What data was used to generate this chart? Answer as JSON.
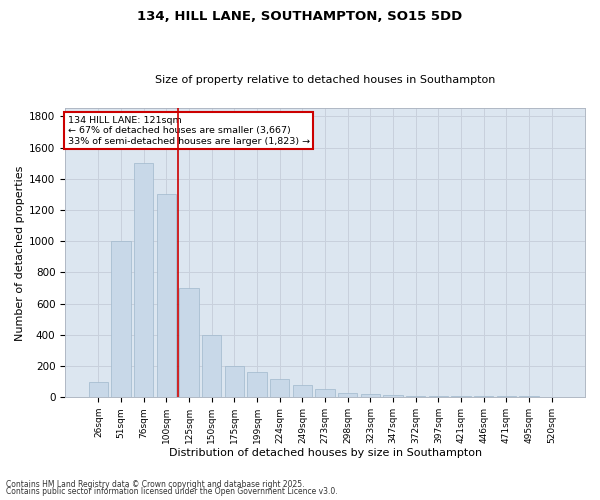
{
  "title": "134, HILL LANE, SOUTHAMPTON, SO15 5DD",
  "subtitle": "Size of property relative to detached houses in Southampton",
  "xlabel": "Distribution of detached houses by size in Southampton",
  "ylabel": "Number of detached properties",
  "categories": [
    "26sqm",
    "51sqm",
    "76sqm",
    "100sqm",
    "125sqm",
    "150sqm",
    "175sqm",
    "199sqm",
    "224sqm",
    "249sqm",
    "273sqm",
    "298sqm",
    "323sqm",
    "347sqm",
    "372sqm",
    "397sqm",
    "421sqm",
    "446sqm",
    "471sqm",
    "495sqm",
    "520sqm"
  ],
  "values": [
    100,
    1000,
    1500,
    1300,
    700,
    400,
    200,
    160,
    120,
    80,
    50,
    30,
    20,
    15,
    10,
    5,
    5,
    5,
    5,
    5,
    2
  ],
  "bar_color": "#c8d8e8",
  "bar_edgecolor": "#a0b8cc",
  "grid_color": "#c8d0dc",
  "bg_color": "#dce6f0",
  "fig_color": "#ffffff",
  "vline_x": 3.5,
  "vline_color": "#cc0000",
  "annotation_title": "134 HILL LANE: 121sqm",
  "annotation_line1": "← 67% of detached houses are smaller (3,667)",
  "annotation_line2": "33% of semi-detached houses are larger (1,823) →",
  "annotation_box_color": "#cc0000",
  "ylim": [
    0,
    1850
  ],
  "yticks": [
    0,
    200,
    400,
    600,
    800,
    1000,
    1200,
    1400,
    1600,
    1800
  ],
  "footer1": "Contains HM Land Registry data © Crown copyright and database right 2025.",
  "footer2": "Contains public sector information licensed under the Open Government Licence v3.0."
}
